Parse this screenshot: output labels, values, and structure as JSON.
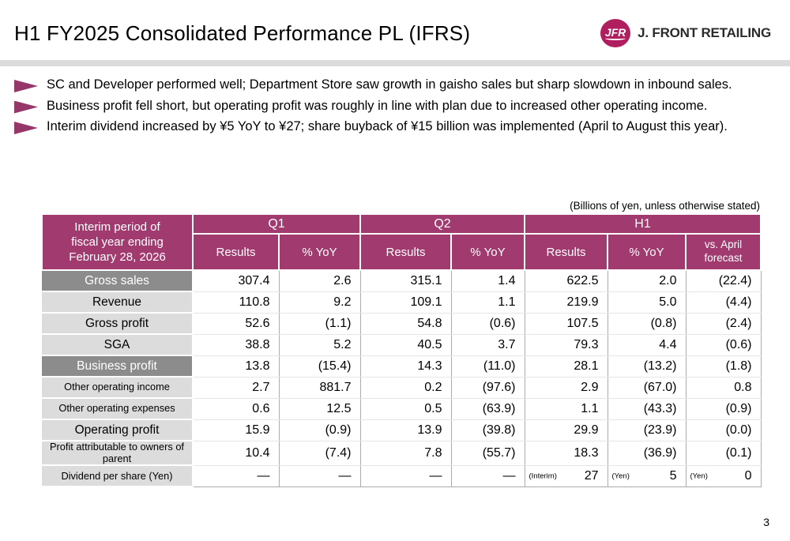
{
  "header": {
    "title": "H1 FY2025 Consolidated Performance PL (IFRS)",
    "logo_text": "JFR",
    "company": "J. FRONT RETAILING"
  },
  "bullets": [
    {
      "text": "SC and Developer performed well; Department Store saw growth in gaisho sales but sharp slowdown in inbound sales."
    },
    {
      "text": "Business profit fell short, but operating profit was roughly in line with plan due to increased other operating income."
    },
    {
      "text": "Interim dividend increased by ¥5 YoY to ¥27; share buyback of ¥15 billion was implemented (April to August this year)."
    }
  ],
  "table_note": "(Billions of yen, unless otherwise stated)",
  "table": {
    "corner_label": "Interim period of\nfiscal year ending\nFebruary 28, 2026",
    "groups": [
      {
        "label": "Q1",
        "colspan": 2
      },
      {
        "label": "Q2",
        "colspan": 2
      },
      {
        "label": "H1",
        "colspan": 3
      }
    ],
    "subheaders": [
      "Results",
      "% YoY",
      "Results",
      "% YoY",
      "Results",
      "% YoY",
      "vs. April\nforecast"
    ],
    "rows": [
      {
        "label": "Gross sales",
        "tone": "dark",
        "label_size": "large",
        "cells": [
          "307.4",
          "2.6",
          "315.1",
          "1.4",
          "622.5",
          "2.0",
          "(22.4)"
        ]
      },
      {
        "label": "Revenue",
        "tone": "light",
        "label_size": "large",
        "cells": [
          "110.8",
          "9.2",
          "109.1",
          "1.1",
          "219.9",
          "5.0",
          "(4.4)"
        ]
      },
      {
        "label": "Gross profit",
        "tone": "light",
        "label_size": "large",
        "cells": [
          "52.6",
          "(1.1)",
          "54.8",
          "(0.6)",
          "107.5",
          "(0.8)",
          "(2.4)"
        ]
      },
      {
        "label": "SGA",
        "tone": "light",
        "label_size": "large",
        "cells": [
          "38.8",
          "5.2",
          "40.5",
          "3.7",
          "79.3",
          "4.4",
          "(0.6)"
        ]
      },
      {
        "label": "Business profit",
        "tone": "dark",
        "label_size": "large",
        "cells": [
          "13.8",
          "(15.4)",
          "14.3",
          "(11.0)",
          "28.1",
          "(13.2)",
          "(1.8)"
        ]
      },
      {
        "label": "Other operating income",
        "tone": "light",
        "label_size": "small",
        "cells": [
          "2.7",
          "881.7",
          "0.2",
          "(97.6)",
          "2.9",
          "(67.0)",
          "0.8"
        ]
      },
      {
        "label": "Other operating expenses",
        "tone": "light",
        "label_size": "small",
        "cells": [
          "0.6",
          "12.5",
          "0.5",
          "(63.9)",
          "1.1",
          "(43.3)",
          "(0.9)"
        ]
      },
      {
        "label": "Operating profit",
        "tone": "light",
        "label_size": "large",
        "cells": [
          "15.9",
          "(0.9)",
          "13.9",
          "(39.8)",
          "29.9",
          "(23.9)",
          "(0.0)"
        ]
      },
      {
        "label": "Profit attributable to owners of parent",
        "tone": "light",
        "label_size": "small",
        "cells": [
          "10.4",
          "(7.4)",
          "7.8",
          "(55.7)",
          "18.3",
          "(36.9)",
          "(0.1)"
        ]
      },
      {
        "label": "Dividend per share (Yen)",
        "tone": "light",
        "label_size": "small",
        "cells": [
          "—",
          "—",
          "—",
          "—",
          {
            "prefix": "(Interim)",
            "value": "27"
          },
          {
            "prefix": "(Yen)",
            "value": "5"
          },
          {
            "prefix": "(Yen)",
            "value": "0"
          }
        ]
      }
    ]
  },
  "page_number": "3",
  "colors": {
    "accent": "#A13A6E",
    "logo": "#B01E5F",
    "bullet": "#96376A",
    "dark_row": "#8C8C8C",
    "light_row": "#DCDCDC"
  }
}
